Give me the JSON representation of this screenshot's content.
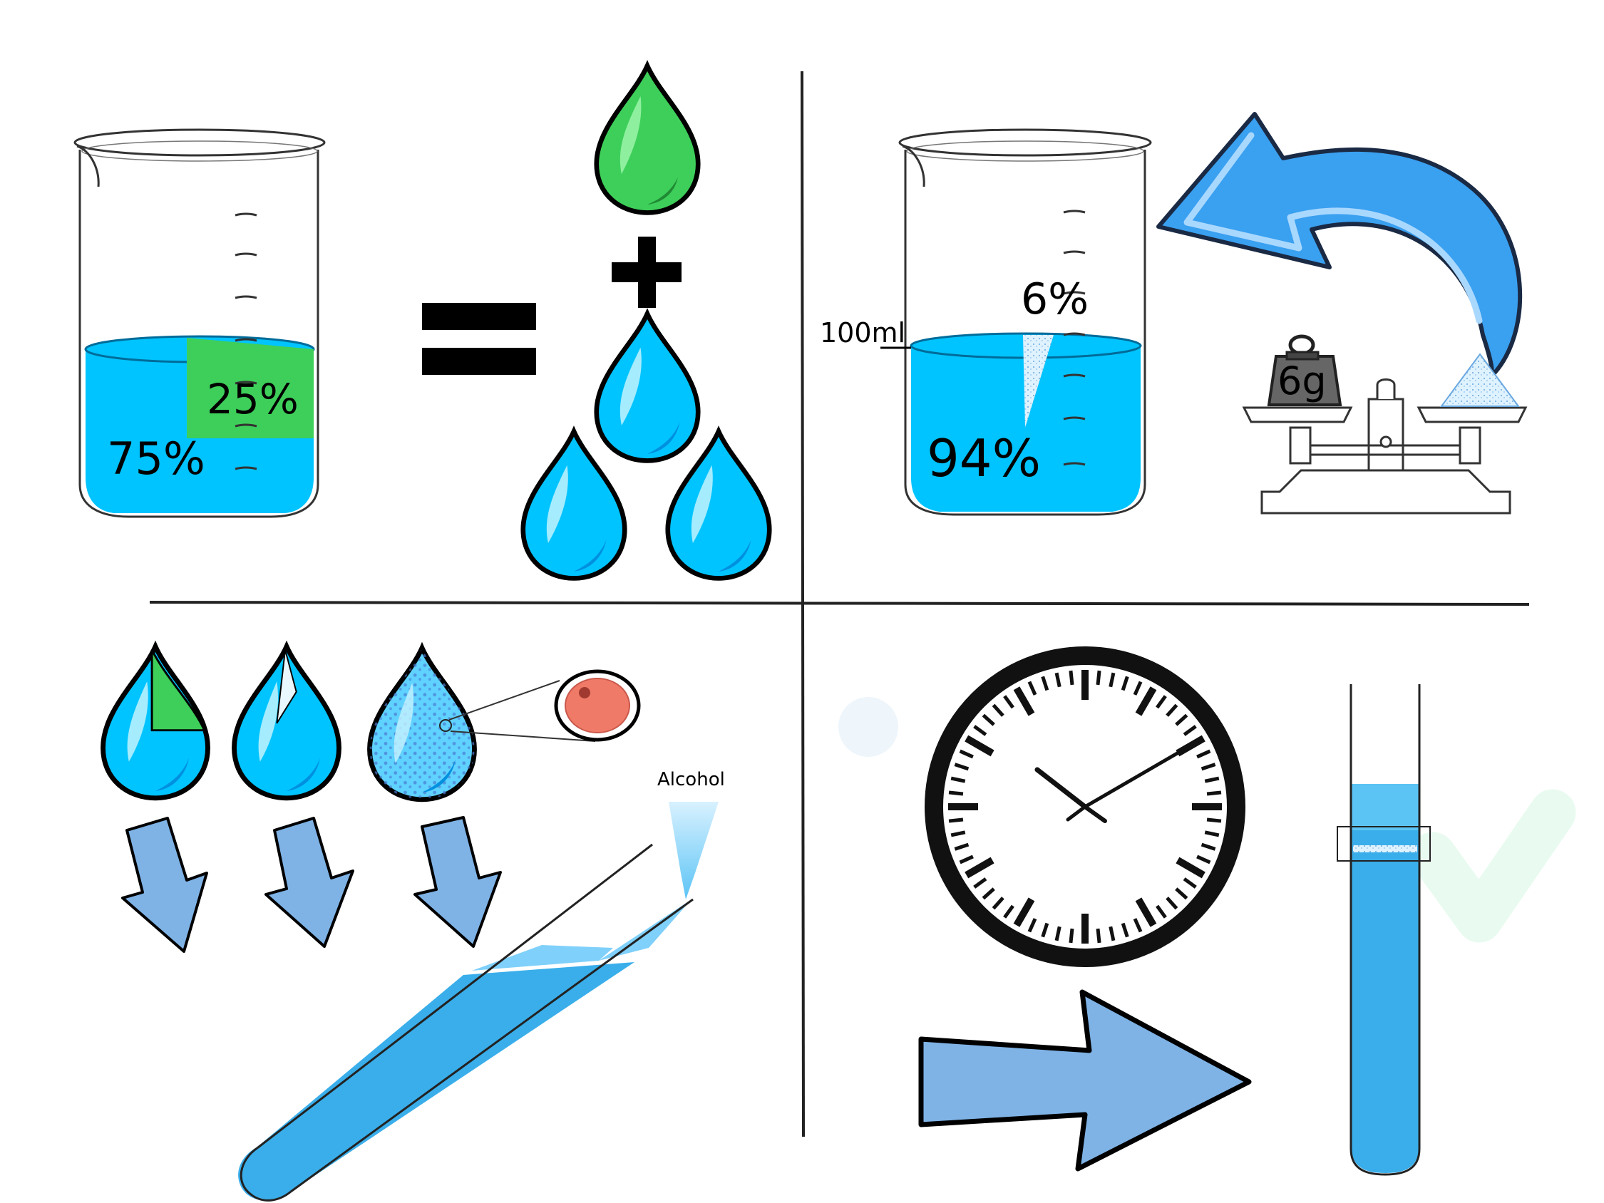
{
  "panel_1": {
    "beaker_label_water": "75%",
    "beaker_label_extract": "25%"
  },
  "panel_2": {
    "label_volume": "100ml",
    "label_solute": "6%",
    "label_solvent": "94%",
    "weight_label": "6g"
  },
  "panel_3": {
    "label_alcohol": "Alcohol"
  },
  "colors": {
    "water": "#00c4ff",
    "water_dark": "#009be6",
    "extract_green": "#3ecf5a",
    "arrow_blue": "#7fb3e6",
    "tube_blue": "#3aaeea",
    "curved_arrow": "#3aa0f0",
    "cell_red": "#f07a68"
  },
  "icons": [
    "beaker-icon",
    "drop-icon",
    "plus-icon",
    "equals-icon",
    "balance-scale-icon",
    "weight-icon",
    "clock-icon",
    "test-tube-icon",
    "arrow-icon",
    "cell-icon"
  ]
}
